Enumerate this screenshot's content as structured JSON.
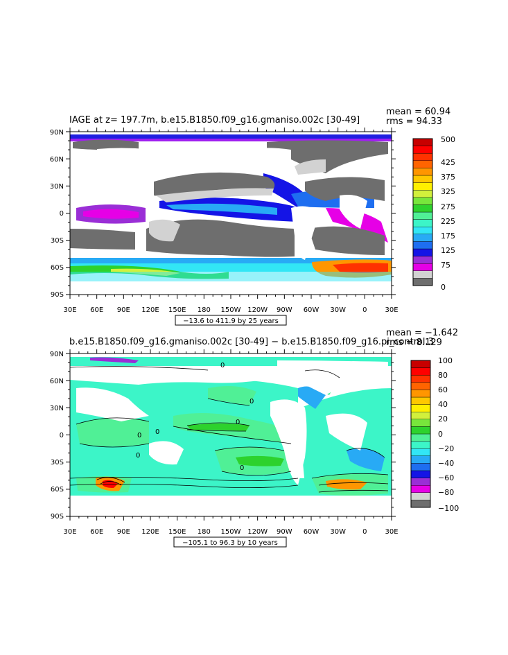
{
  "panels": [
    {
      "title": "IAGE at z= 197.7m, b.e15.B1850.f09_g16.gmaniso.002c [30-49]",
      "mean": "mean = 60.94",
      "rms": "rms = 94.33",
      "range_label": "−13.6 to 411.9 by 25 years",
      "lat_labels": [
        "90N",
        "60N",
        "30N",
        "0",
        "30S",
        "60S",
        "90S"
      ],
      "lon_labels": [
        "30E",
        "60E",
        "90E",
        "120E",
        "150E",
        "180",
        "150W",
        "120W",
        "90W",
        "60W",
        "30W",
        "0",
        "30E"
      ],
      "colorbar": {
        "labels": [
          "500",
          "425",
          "375",
          "325",
          "275",
          "225",
          "175",
          "125",
          "75",
          "0"
        ],
        "colors": [
          "#6e6e6e",
          "#d2d2d2",
          "#e600e6",
          "#9a2ed6",
          "#1414e6",
          "#1e6ef0",
          "#28aaf5",
          "#32e6f5",
          "#3cf5c8",
          "#50f096",
          "#2dd22d",
          "#78e63c",
          "#d2f03c",
          "#fff000",
          "#ffc800",
          "#ff9600",
          "#ff6400",
          "#ff3200",
          "#ff0000",
          "#c80000"
        ]
      }
    },
    {
      "title": "b.e15.B1850.f09_g16.gmaniso.002c [30-49] − b.e15.B1850.f09_g16.pi_control.3",
      "mean": "mean = −1.642",
      "rms": "rms = 8.129",
      "range_label": "−105.1 to 96.3 by 10 years",
      "lat_labels": [
        "90N",
        "60N",
        "30N",
        "0",
        "30S",
        "60S",
        "90S"
      ],
      "lon_labels": [
        "30E",
        "60E",
        "90E",
        "120E",
        "150E",
        "180",
        "150W",
        "120W",
        "90W",
        "60W",
        "30W",
        "0",
        "30E"
      ],
      "colorbar": {
        "labels": [
          "100",
          "80",
          "60",
          "40",
          "20",
          "0",
          "−20",
          "−40",
          "−60",
          "−80",
          "−100"
        ],
        "colors": [
          "#6e6e6e",
          "#d2d2d2",
          "#e600e6",
          "#9a2ed6",
          "#1414e6",
          "#1e6ef0",
          "#28aaf5",
          "#32e6f5",
          "#3cf5c8",
          "#50f096",
          "#2dd22d",
          "#78e63c",
          "#d2f03c",
          "#fff000",
          "#ffc800",
          "#ff9600",
          "#ff6400",
          "#ff3200",
          "#ff0000",
          "#c80000"
        ]
      }
    }
  ],
  "contour_labels": [
    "0",
    "0",
    "0",
    "0",
    "0",
    "0",
    "0"
  ]
}
